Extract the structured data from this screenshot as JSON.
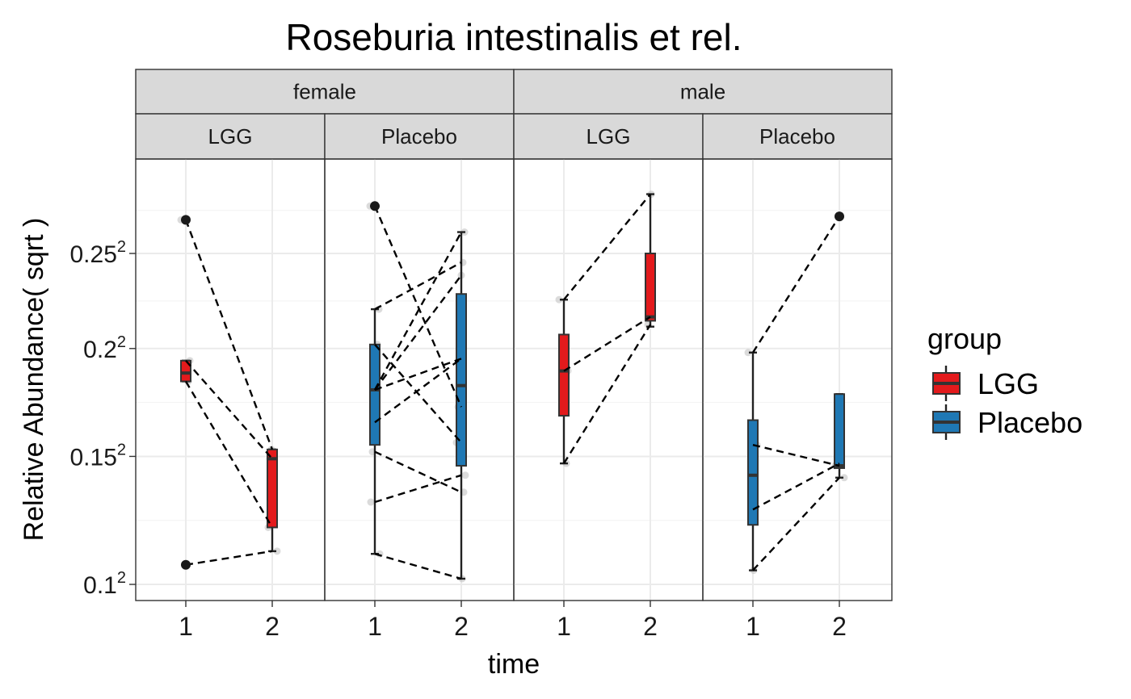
{
  "chart_data": {
    "type": "box",
    "title": "Roseburia intestinalis et rel.",
    "xlabel": "time",
    "ylabel": "Relative Abundance( sqrt )",
    "y_scale": "sqrt",
    "ylim": [
      0.096,
      0.29
    ],
    "y_ticks": [
      {
        "value": 0.1,
        "label": "0.1",
        "sup": "2"
      },
      {
        "value": 0.15,
        "label": "0.15",
        "sup": "2"
      },
      {
        "value": 0.2,
        "label": "0.2",
        "sup": "2"
      },
      {
        "value": 0.25,
        "label": "0.25",
        "sup": "2"
      }
    ],
    "x_categories": [
      "1",
      "2"
    ],
    "facet_rows_top": [
      "female",
      "male"
    ],
    "facet_cols": [
      "LGG",
      "Placebo"
    ],
    "grid": true,
    "legend": {
      "title": "group",
      "position": "right",
      "items": [
        {
          "label": "LGG",
          "color": "#e31a1c"
        },
        {
          "label": "Placebo",
          "color": "#1f78b4"
        }
      ]
    },
    "panels": [
      {
        "sex": "female",
        "group": "LGG",
        "color": "#e31a1c",
        "boxes": [
          {
            "time": "1",
            "whisker_low": 0.184,
            "q1": 0.184,
            "median": 0.188,
            "q3": 0.194,
            "whisker_high": 0.194
          },
          {
            "time": "2",
            "whisker_low": 0.112,
            "q1": 0.121,
            "median": 0.149,
            "q3": 0.153,
            "whisker_high": 0.153
          }
        ],
        "outliers": [
          {
            "time": "1",
            "value": 0.269
          },
          {
            "time": "1",
            "value": 0.107
          }
        ],
        "points": [
          {
            "time": "1",
            "value": 0.269
          },
          {
            "time": "1",
            "value": 0.194
          },
          {
            "time": "1",
            "value": 0.184
          },
          {
            "time": "1",
            "value": 0.107
          },
          {
            "time": "2",
            "value": 0.153
          },
          {
            "time": "2",
            "value": 0.149
          },
          {
            "time": "2",
            "value": 0.121
          },
          {
            "time": "2",
            "value": 0.112
          }
        ],
        "pairs": [
          [
            0.269,
            0.153
          ],
          [
            0.194,
            0.149
          ],
          [
            0.184,
            0.121
          ],
          [
            0.107,
            0.112
          ]
        ]
      },
      {
        "sex": "female",
        "group": "Placebo",
        "color": "#1f78b4",
        "boxes": [
          {
            "time": "1",
            "whisker_low": 0.111,
            "q1": 0.155,
            "median": 0.18,
            "q3": 0.202,
            "whisker_high": 0.22
          },
          {
            "time": "2",
            "whisker_low": 0.102,
            "q1": 0.146,
            "median": 0.182,
            "q3": 0.228,
            "whisker_high": 0.262
          }
        ],
        "outliers": [
          {
            "time": "1",
            "value": 0.277
          }
        ],
        "points": [
          {
            "time": "1",
            "value": 0.277
          },
          {
            "time": "1",
            "value": 0.22
          },
          {
            "time": "1",
            "value": 0.202
          },
          {
            "time": "1",
            "value": 0.18
          },
          {
            "time": "1",
            "value": 0.165
          },
          {
            "time": "1",
            "value": 0.152
          },
          {
            "time": "1",
            "value": 0.131
          },
          {
            "time": "1",
            "value": 0.111
          },
          {
            "time": "2",
            "value": 0.262
          },
          {
            "time": "2",
            "value": 0.245
          },
          {
            "time": "2",
            "value": 0.238
          },
          {
            "time": "2",
            "value": 0.195
          },
          {
            "time": "2",
            "value": 0.172
          },
          {
            "time": "2",
            "value": 0.156
          },
          {
            "time": "2",
            "value": 0.142
          },
          {
            "time": "2",
            "value": 0.135
          },
          {
            "time": "2",
            "value": 0.102
          }
        ],
        "pairs": [
          [
            0.277,
            0.172
          ],
          [
            0.22,
            0.245
          ],
          [
            0.202,
            0.156
          ],
          [
            0.18,
            0.262
          ],
          [
            0.18,
            0.238
          ],
          [
            0.18,
            0.195
          ],
          [
            0.165,
            0.195
          ],
          [
            0.152,
            0.135
          ],
          [
            0.131,
            0.142
          ],
          [
            0.111,
            0.102
          ]
        ]
      },
      {
        "sex": "male",
        "group": "LGG",
        "color": "#e31a1c",
        "boxes": [
          {
            "time": "1",
            "whisker_low": 0.147,
            "q1": 0.168,
            "median": 0.189,
            "q3": 0.207,
            "whisker_high": 0.225
          },
          {
            "time": "2",
            "whisker_low": 0.211,
            "q1": 0.214,
            "median": 0.216,
            "q3": 0.25,
            "whisker_high": 0.284
          }
        ],
        "outliers": [],
        "points": [
          {
            "time": "1",
            "value": 0.225
          },
          {
            "time": "1",
            "value": 0.189
          },
          {
            "time": "1",
            "value": 0.147
          },
          {
            "time": "2",
            "value": 0.284
          },
          {
            "time": "2",
            "value": 0.216
          },
          {
            "time": "2",
            "value": 0.212
          }
        ],
        "pairs": [
          [
            0.225,
            0.284
          ],
          [
            0.189,
            0.216
          ],
          [
            0.147,
            0.212
          ]
        ]
      },
      {
        "sex": "male",
        "group": "Placebo",
        "color": "#1f78b4",
        "boxes": [
          {
            "time": "1",
            "whisker_low": 0.105,
            "q1": 0.122,
            "median": 0.142,
            "q3": 0.166,
            "whisker_high": 0.198
          },
          {
            "time": "2",
            "whisker_low": 0.141,
            "q1": 0.145,
            "median": 0.146,
            "q3": 0.178,
            "whisker_high": 0.178
          }
        ],
        "outliers": [
          {
            "time": "2",
            "value": 0.271
          }
        ],
        "points": [
          {
            "time": "1",
            "value": 0.198
          },
          {
            "time": "1",
            "value": 0.155
          },
          {
            "time": "1",
            "value": 0.128
          },
          {
            "time": "1",
            "value": 0.105
          },
          {
            "time": "2",
            "value": 0.271
          },
          {
            "time": "2",
            "value": 0.147
          },
          {
            "time": "2",
            "value": 0.146
          },
          {
            "time": "2",
            "value": 0.141
          }
        ],
        "pairs": [
          [
            0.198,
            0.271
          ],
          [
            0.155,
            0.146
          ],
          [
            0.128,
            0.147
          ],
          [
            0.105,
            0.141
          ]
        ]
      }
    ]
  }
}
